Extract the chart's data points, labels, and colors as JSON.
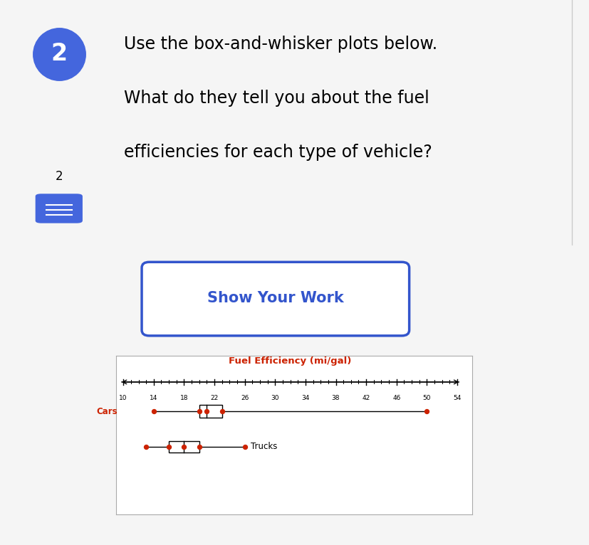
{
  "title": "Fuel Efficiency (mi/gal)",
  "title_color": "#cc2200",
  "x_min": 10,
  "x_max": 54,
  "x_ticks": [
    10,
    14,
    18,
    22,
    26,
    30,
    34,
    38,
    42,
    46,
    50,
    54
  ],
  "cars": {
    "min": 14,
    "q1": 20,
    "median": 21,
    "q3": 23,
    "max": 50,
    "label": "Cars"
  },
  "trucks": {
    "min": 13,
    "q1": 16,
    "median": 18,
    "q3": 20,
    "max": 26,
    "label": "Trucks"
  },
  "box_color": "black",
  "whisker_color": "black",
  "dot_color": "#cc2200",
  "label_color_cars": "#cc2200",
  "label_color_trucks": "black",
  "bg_gray": "#e8e8ec",
  "bg_white": "#ffffff",
  "circle_color": "#4466dd",
  "question_number": "2",
  "question_text_line1": "Use the box-and-whisker plots below.",
  "question_text_line2": "What do they tell you about the fuel",
  "question_text_line3": "efficiencies for each type of vehicle?",
  "show_work_text": "Show Your Work",
  "show_work_color": "#3355cc",
  "sub_label": "2",
  "page_bg": "#f5f5f5"
}
